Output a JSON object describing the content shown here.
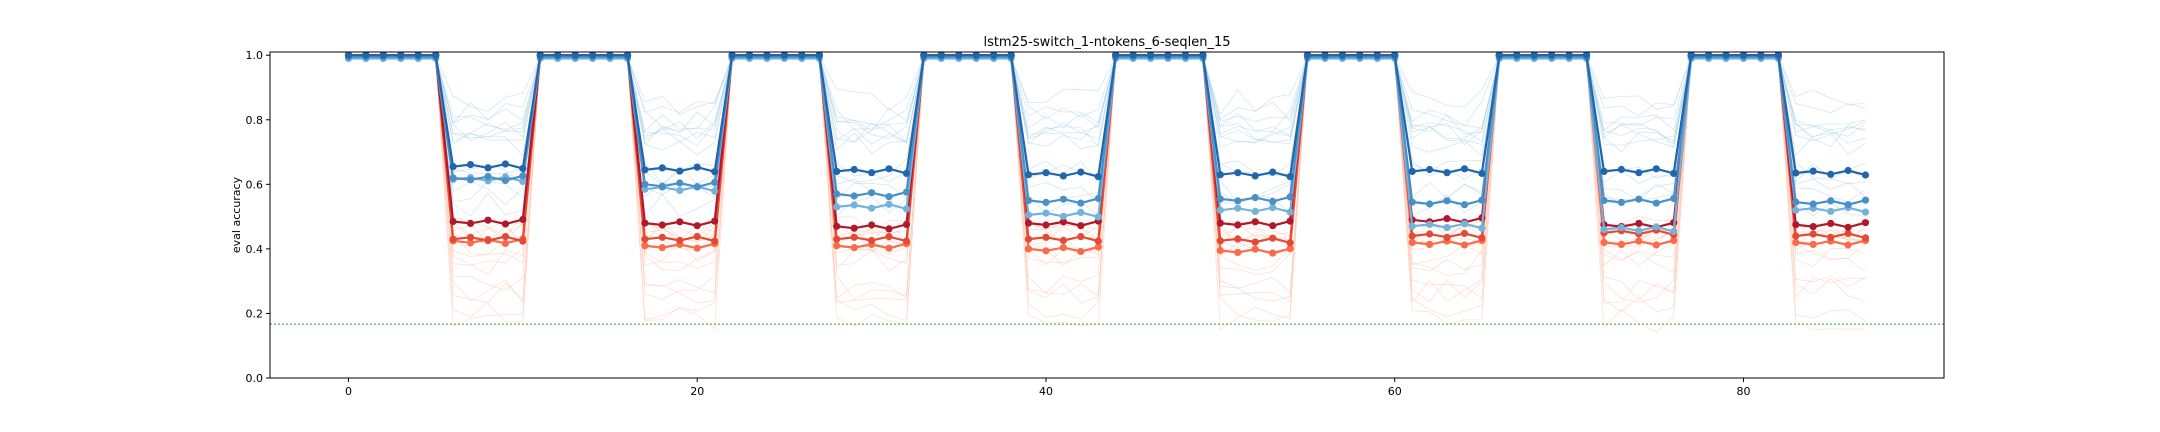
{
  "chart_data": {
    "type": "line",
    "title": "lstm25-switch_1-ntokens_6-seqlen_15",
    "xlabel": "",
    "ylabel": "eval accuracy",
    "xlim": [
      -4.5,
      91.5
    ],
    "ylim": [
      0.0,
      1.01
    ],
    "xticks": [
      0,
      20,
      40,
      60,
      80
    ],
    "yticks": [
      0.0,
      0.2,
      0.4,
      0.6,
      0.8,
      1.0
    ],
    "grid": false,
    "legend": "none",
    "chance_level": 0.167,
    "period": 11,
    "high_segment_length": 6,
    "x_max": 87,
    "colors": {
      "blue_dark": "#2166ac",
      "blue_mid": "#4a90c8",
      "blue_light": "#74b2dc",
      "red_dark": "#b2182b",
      "red_mid": "#e34a33",
      "red_light": "#fb6a4a",
      "faint_blue": "#9ecae1",
      "faint_red": "#fcbba1",
      "chance_line": "#2ca02c"
    },
    "series": [
      {
        "color": "blue_dark",
        "high": 1.0,
        "low": [
          0.655,
          0.645,
          0.64,
          0.63,
          0.63,
          0.64,
          0.64,
          0.635
        ]
      },
      {
        "color": "blue_mid",
        "high": 0.995,
        "low": [
          0.62,
          0.6,
          0.57,
          0.55,
          0.555,
          0.545,
          0.55,
          0.545
        ]
      },
      {
        "color": "blue_light",
        "high": 0.99,
        "low": [
          0.615,
          0.585,
          0.53,
          0.505,
          0.52,
          0.47,
          0.46,
          0.52
        ]
      },
      {
        "color": "red_dark",
        "high": 1.0,
        "low": [
          0.485,
          0.48,
          0.47,
          0.48,
          0.48,
          0.49,
          0.475,
          0.475
        ]
      },
      {
        "color": "red_mid",
        "high": 1.0,
        "low": [
          0.43,
          0.43,
          0.43,
          0.43,
          0.425,
          0.44,
          0.45,
          0.44
        ]
      },
      {
        "color": "red_light",
        "high": 1.0,
        "low": [
          0.425,
          0.41,
          0.41,
          0.4,
          0.395,
          0.42,
          0.42,
          0.42
        ]
      }
    ]
  }
}
